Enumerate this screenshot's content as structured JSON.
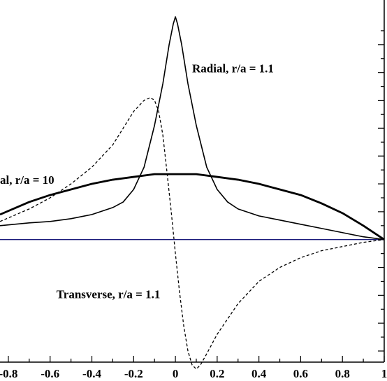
{
  "chart_data": {
    "type": "line",
    "xlim": [
      -0.84,
      1.0
    ],
    "x_ticks": [
      {
        "value": -0.8,
        "label": "-0.8"
      },
      {
        "value": -0.6,
        "label": "-0.6"
      },
      {
        "value": -0.4,
        "label": "-0.4"
      },
      {
        "value": -0.2,
        "label": "-0.2"
      },
      {
        "value": 0,
        "label": "0"
      },
      {
        "value": 0.2,
        "label": "0.2"
      },
      {
        "value": 0.4,
        "label": "0.4"
      },
      {
        "value": 0.6,
        "label": "0.6"
      },
      {
        "value": 0.8,
        "label": "0.8"
      },
      {
        "value": 1.0,
        "label": "1"
      }
    ],
    "ylim": [
      -0.88,
      1.6
    ],
    "y_ticks_right": [
      -0.8,
      -0.6,
      -0.4,
      -0.2,
      0,
      0.2,
      0.4,
      0.6,
      0.8,
      1.0,
      1.2,
      1.4
    ],
    "grid": false,
    "annotations": [
      {
        "text": "Radial, r/a = 1.1",
        "x": 0.08,
        "y": 1.2
      },
      {
        "text": "al, r/a = 10",
        "x": -0.84,
        "y": 0.4
      },
      {
        "text": "Transverse, r/a = 1.1",
        "x": -0.57,
        "y": -0.42
      }
    ],
    "series": [
      {
        "style": "solid",
        "color": "#000000",
        "width": 1.6,
        "x": [
          -0.84,
          -0.7,
          -0.6,
          -0.5,
          -0.4,
          -0.3,
          -0.25,
          -0.2,
          -0.15,
          -0.1,
          -0.06,
          -0.03,
          -0.01,
          0,
          0.01,
          0.03,
          0.06,
          0.1,
          0.15,
          0.2,
          0.25,
          0.3,
          0.4,
          0.5,
          0.6,
          0.7,
          0.8,
          0.9,
          1.0
        ],
        "y": [
          0.1,
          0.12,
          0.13,
          0.15,
          0.18,
          0.23,
          0.27,
          0.36,
          0.52,
          0.82,
          1.12,
          1.4,
          1.55,
          1.6,
          1.55,
          1.4,
          1.12,
          0.82,
          0.52,
          0.36,
          0.27,
          0.22,
          0.17,
          0.14,
          0.11,
          0.08,
          0.05,
          0.02,
          0.0
        ]
      },
      {
        "style": "dashed",
        "color": "#000000",
        "width": 1.3,
        "x": [
          -0.84,
          -0.7,
          -0.6,
          -0.5,
          -0.4,
          -0.3,
          -0.25,
          -0.2,
          -0.15,
          -0.12,
          -0.1,
          -0.08,
          -0.06,
          -0.04,
          -0.02,
          0,
          0.02,
          0.04,
          0.06,
          0.08,
          0.1,
          0.12,
          0.15,
          0.2,
          0.3,
          0.4,
          0.5,
          0.6,
          0.7,
          0.8,
          0.9,
          1.0
        ],
        "y": [
          0.13,
          0.22,
          0.3,
          0.4,
          0.52,
          0.68,
          0.8,
          0.92,
          1.0,
          1.02,
          1.0,
          0.92,
          0.75,
          0.48,
          0.2,
          -0.1,
          -0.38,
          -0.62,
          -0.8,
          -0.9,
          -0.93,
          -0.9,
          -0.82,
          -0.68,
          -0.46,
          -0.3,
          -0.2,
          -0.13,
          -0.08,
          -0.05,
          -0.02,
          0.0
        ]
      },
      {
        "style": "solid",
        "color": "#000000",
        "width": 2.8,
        "x": [
          -0.84,
          -0.7,
          -0.6,
          -0.5,
          -0.4,
          -0.3,
          -0.2,
          -0.1,
          0,
          0.1,
          0.2,
          0.3,
          0.4,
          0.5,
          0.6,
          0.7,
          0.8,
          0.9,
          1.0
        ],
        "y": [
          0.18,
          0.27,
          0.32,
          0.36,
          0.4,
          0.43,
          0.45,
          0.47,
          0.47,
          0.47,
          0.45,
          0.43,
          0.4,
          0.36,
          0.32,
          0.26,
          0.19,
          0.1,
          0.0
        ]
      },
      {
        "style": "solid",
        "color": "#1a1a7a",
        "width": 1.4,
        "x": [
          -0.84,
          1.0
        ],
        "y": [
          0,
          0
        ]
      }
    ]
  }
}
